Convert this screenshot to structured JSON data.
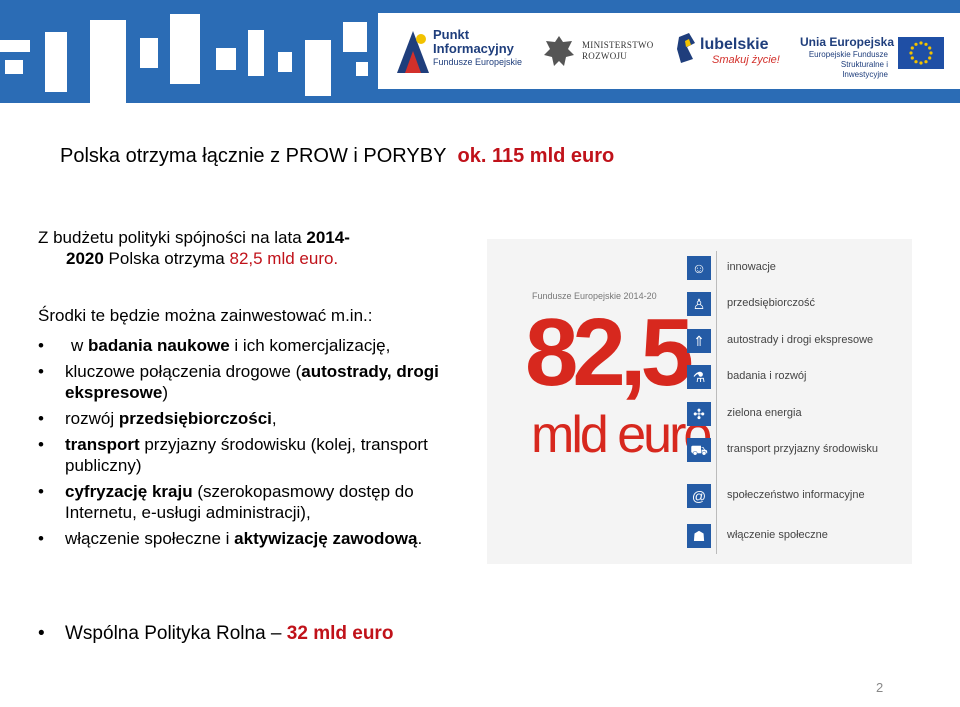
{
  "header": {
    "punkt_title": "Punkt\nInformacyjny",
    "punkt_sub": "Fundusze Europejskie",
    "ministry": "MINISTERSTWO\nROZWOJU",
    "region_name": "lubelskie",
    "region_tag": "Smakuj życie!",
    "ue_title": "Unia Europejska",
    "ue_sub": "Europejskie Fundusze Strukturalne i Inwestycyjne",
    "brand_blue": "#2b6cb5"
  },
  "headline": {
    "text": "Polska otrzyma łącznie z PROW i PORYBY",
    "highlight": "ok. 115 mld euro"
  },
  "intro": {
    "text1": "Z budżetu polityki spójności na lata ",
    "years1": "2014-",
    "years2": "2020",
    "text2": " Polska otrzyma ",
    "amount": "82,5 mld euro."
  },
  "means": "Środki te będzie można zainwestować m.in.:",
  "bullets": [
    {
      "pre": "w ",
      "bold": "badania naukowe",
      "post": " i ich komercjalizację,"
    },
    {
      "pre": "kluczowe połączenia drogowe (",
      "bold": "autostrady, drogi ekspresowe",
      "post": ")"
    },
    {
      "pre": "rozwój ",
      "bold": "przedsiębiorczości",
      "post": ","
    },
    {
      "pre": "",
      "bold": "transport",
      "post": " przyjazny środowisku (kolej, transport publiczny)"
    },
    {
      "pre": "",
      "bold": "cyfryzację kraju",
      "post": " (szerokopasmowy dostęp do Internetu, e-usługi administracji),"
    },
    {
      "pre": "włączenie społeczne i ",
      "bold": "aktywizację zawodową",
      "post": "."
    }
  ],
  "final": {
    "text": "Wspólna Polityka Rolna – ",
    "amount": "32 mld euro"
  },
  "page_number": "2",
  "infographic": {
    "fe_label": "Fundusze Europejskie 2014-20",
    "amount": "82,5",
    "unit": "mld euro",
    "items": [
      {
        "label": "innowacje",
        "icon": "lightbulb-head-icon",
        "glyph": "☺"
      },
      {
        "label": "przedsiębiorczość",
        "icon": "businessman-icon",
        "glyph": "♙"
      },
      {
        "label": "autostrady i drogi ekspresowe",
        "icon": "road-icon",
        "glyph": "⇑"
      },
      {
        "label": "badania i rozwój",
        "icon": "microscope-icon",
        "glyph": "⚗"
      },
      {
        "label": "zielona energia",
        "icon": "wind-turbine-icon",
        "glyph": "✣"
      },
      {
        "label": "transport przyjazny środowisku",
        "icon": "car-icon",
        "glyph": "⛟"
      },
      {
        "label": "społeczeństwo informacyjne",
        "icon": "at-sign-icon",
        "glyph": "@"
      },
      {
        "label": "włączenie społeczne",
        "icon": "people-icon",
        "glyph": "☗"
      }
    ]
  }
}
